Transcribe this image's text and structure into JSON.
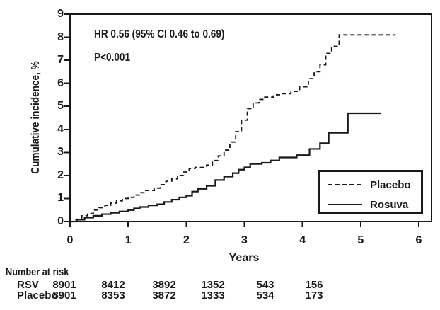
{
  "annotation": {
    "hr": "HR 0.56 (95% CI 0.46 to 0.69)",
    "p": "P<0.001"
  },
  "y_axis": {
    "title": "Cumulative incidence, %"
  },
  "x_axis": {
    "title": "Years"
  },
  "legend": {
    "items": [
      {
        "label": "Placebo",
        "style": "dashed"
      },
      {
        "label": "Rosuva",
        "style": "solid"
      }
    ]
  },
  "risk_table": {
    "title": "Number at risk",
    "rows": [
      {
        "label": "RSV",
        "values": [
          "8901",
          "8412",
          "3892",
          "1352",
          "543",
          "156"
        ]
      },
      {
        "label": "Placebo",
        "values": [
          "8901",
          "8353",
          "3872",
          "1333",
          "534",
          "173"
        ]
      }
    ]
  },
  "colors": {
    "line": "#191919",
    "background": "#ffffff"
  },
  "chart_data": {
    "type": "line",
    "step": true,
    "title": "",
    "xlabel": "Years",
    "ylabel": "Cumulative incidence, %",
    "xlim": [
      0,
      6
    ],
    "ylim": [
      0,
      9
    ],
    "x_ticks": [
      0,
      1,
      2,
      3,
      4,
      5,
      6
    ],
    "y_ticks": [
      0,
      1,
      2,
      3,
      4,
      5,
      6,
      7,
      8,
      9
    ],
    "grid": false,
    "legend_position": "lower right",
    "annotations": [
      "HR 0.56 (95% CI 0.46 to 0.69)",
      "P<0.001"
    ],
    "series": [
      {
        "name": "Placebo",
        "line_style": "dashed",
        "points": [
          [
            0,
            0
          ],
          [
            0.1,
            0.1
          ],
          [
            0.2,
            0.25
          ],
          [
            0.3,
            0.35
          ],
          [
            0.4,
            0.5
          ],
          [
            0.5,
            0.6
          ],
          [
            0.6,
            0.7
          ],
          [
            0.7,
            0.8
          ],
          [
            0.8,
            0.9
          ],
          [
            0.9,
            1.0
          ],
          [
            1.0,
            1.05
          ],
          [
            1.1,
            1.15
          ],
          [
            1.2,
            1.25
          ],
          [
            1.3,
            1.35
          ],
          [
            1.45,
            1.45
          ],
          [
            1.55,
            1.6
          ],
          [
            1.65,
            1.75
          ],
          [
            1.75,
            1.85
          ],
          [
            1.85,
            2.0
          ],
          [
            1.95,
            2.15
          ],
          [
            2.05,
            2.3
          ],
          [
            2.15,
            2.35
          ],
          [
            2.35,
            2.45
          ],
          [
            2.45,
            2.65
          ],
          [
            2.55,
            2.85
          ],
          [
            2.65,
            3.1
          ],
          [
            2.75,
            3.45
          ],
          [
            2.85,
            3.9
          ],
          [
            2.95,
            4.4
          ],
          [
            3.05,
            4.9
          ],
          [
            3.15,
            5.15
          ],
          [
            3.25,
            5.3
          ],
          [
            3.35,
            5.4
          ],
          [
            3.5,
            5.5
          ],
          [
            3.65,
            5.55
          ],
          [
            3.8,
            5.65
          ],
          [
            3.95,
            5.85
          ],
          [
            4.1,
            6.2
          ],
          [
            4.2,
            6.5
          ],
          [
            4.3,
            6.8
          ],
          [
            4.4,
            7.3
          ],
          [
            4.5,
            7.6
          ],
          [
            4.63,
            8.1
          ],
          [
            5.6,
            8.1
          ]
        ]
      },
      {
        "name": "Rosuva",
        "line_style": "solid",
        "points": [
          [
            0,
            0
          ],
          [
            0.12,
            0.08
          ],
          [
            0.25,
            0.17
          ],
          [
            0.4,
            0.25
          ],
          [
            0.55,
            0.32
          ],
          [
            0.7,
            0.38
          ],
          [
            0.85,
            0.44
          ],
          [
            1.0,
            0.5
          ],
          [
            1.1,
            0.57
          ],
          [
            1.2,
            0.63
          ],
          [
            1.35,
            0.7
          ],
          [
            1.5,
            0.75
          ],
          [
            1.62,
            0.85
          ],
          [
            1.75,
            0.95
          ],
          [
            1.88,
            1.05
          ],
          [
            2.0,
            1.12
          ],
          [
            2.1,
            1.3
          ],
          [
            2.2,
            1.42
          ],
          [
            2.35,
            1.55
          ],
          [
            2.5,
            1.8
          ],
          [
            2.65,
            1.95
          ],
          [
            2.8,
            2.1
          ],
          [
            2.9,
            2.25
          ],
          [
            3.0,
            2.35
          ],
          [
            3.1,
            2.5
          ],
          [
            3.3,
            2.55
          ],
          [
            3.45,
            2.65
          ],
          [
            3.6,
            2.78
          ],
          [
            3.9,
            2.88
          ],
          [
            4.12,
            3.15
          ],
          [
            4.3,
            3.4
          ],
          [
            4.45,
            3.85
          ],
          [
            4.78,
            4.7
          ],
          [
            5.35,
            4.7
          ]
        ]
      }
    ]
  }
}
